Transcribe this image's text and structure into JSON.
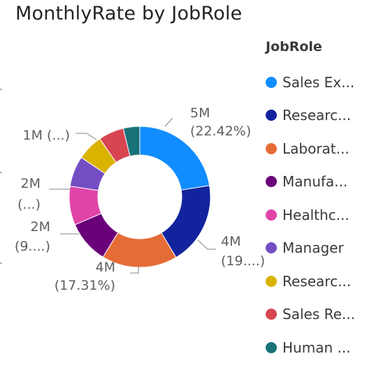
{
  "title": "MonthlyRate by JobRole",
  "legend": {
    "title": "JobRole",
    "items": [
      {
        "label": "Sales Ex...",
        "color": "#118DFF"
      },
      {
        "label": "Researc...",
        "color": "#12239E"
      },
      {
        "label": "Laborat...",
        "color": "#E66C37"
      },
      {
        "label": "Manufa...",
        "color": "#6B007B"
      },
      {
        "label": "Healthc...",
        "color": "#E044A7"
      },
      {
        "label": "Manager",
        "color": "#744EC2"
      },
      {
        "label": "Researc...",
        "color": "#D9B300"
      },
      {
        "label": "Sales Re...",
        "color": "#D64550"
      },
      {
        "label": "Human ...",
        "color": "#197278"
      }
    ]
  },
  "chart_data": {
    "type": "pie",
    "variant": "donut",
    "title": "MonthlyRate by JobRole",
    "legend_title": "JobRole",
    "legend_position": "right",
    "slices": [
      {
        "label": "Sales Ex...",
        "percent": 22.42,
        "color": "#118DFF",
        "data_label": [
          "5M",
          "(22.42%)"
        ]
      },
      {
        "label": "Researc...",
        "percent": 19.0,
        "color": "#12239E",
        "data_label": [
          "4M",
          "(19....)"
        ]
      },
      {
        "label": "Laborat...",
        "percent": 17.31,
        "color": "#E66C37",
        "data_label": [
          "4M",
          "(17.31%)"
        ]
      },
      {
        "label": "Manufa...",
        "percent": 9.8,
        "color": "#6B007B",
        "data_label": [
          "2M",
          "(9....)"
        ]
      },
      {
        "label": "Healthc...",
        "percent": 8.9,
        "color": "#E044A7",
        "data_label": [
          "2M",
          "(...)"
        ]
      },
      {
        "label": "Manager",
        "percent": 7.0,
        "color": "#744EC2",
        "data_label": []
      },
      {
        "label": "Researc...",
        "percent": 6.0,
        "color": "#D9B300",
        "data_label": [
          "1M (...)"
        ]
      },
      {
        "label": "Sales Re...",
        "percent": 5.8,
        "color": "#D64550",
        "data_label": []
      },
      {
        "label": "Human ...",
        "percent": 3.77,
        "color": "#197278",
        "data_label": []
      }
    ]
  }
}
